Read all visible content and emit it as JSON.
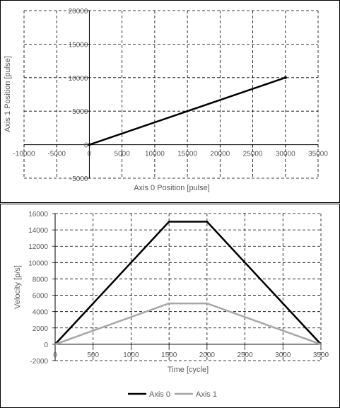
{
  "chart_data": [
    {
      "type": "scatter",
      "title": "",
      "xlabel": "Axis 0 Position [pulse]",
      "ylabel": "Axis 1 Position [pulse]",
      "xlim": [
        -10000,
        35000
      ],
      "ylim": [
        -5000,
        20000
      ],
      "x_ticks": [
        "-10000",
        "-5000",
        "0",
        "5000",
        "10000",
        "15000",
        "20000",
        "25000",
        "30000",
        "35000"
      ],
      "y_ticks": [
        "-5000",
        "0",
        "5000",
        "10000",
        "15000",
        "20000"
      ],
      "grid": true,
      "series": [
        {
          "x": [
            0,
            30000
          ],
          "y": [
            0,
            10000
          ],
          "color": "#000000"
        }
      ]
    },
    {
      "type": "line",
      "title": "",
      "xlabel": "Time [cycle]",
      "ylabel": "Velocity [p/s]",
      "xlim": [
        0,
        3500
      ],
      "ylim": [
        -2000,
        16000
      ],
      "x_ticks": [
        "0",
        "500",
        "1000",
        "1500",
        "2000",
        "2500",
        "3000",
        "3500"
      ],
      "y_ticks": [
        "-2000",
        "0",
        "2000",
        "4000",
        "6000",
        "8000",
        "10000",
        "12000",
        "14000",
        "16000"
      ],
      "grid": true,
      "legend": "bottom",
      "series": [
        {
          "name": "Axis 0",
          "x": [
            0,
            1500,
            2000,
            3500
          ],
          "y": [
            0,
            15000,
            15000,
            0
          ],
          "color": "#000000"
        },
        {
          "name": "Axis 1",
          "x": [
            0,
            1500,
            2000,
            3500
          ],
          "y": [
            0,
            5000,
            5000,
            0
          ],
          "color": "#a6a6a6"
        }
      ]
    }
  ]
}
